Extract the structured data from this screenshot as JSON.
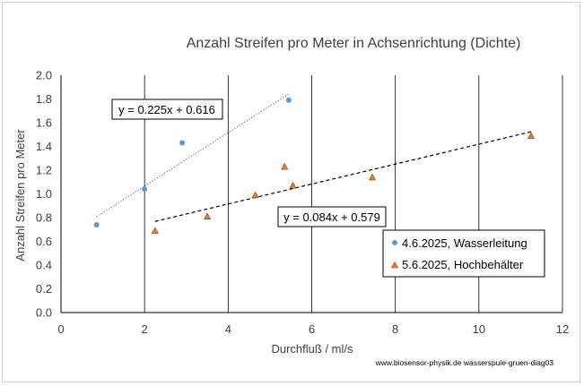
{
  "chart_data": {
    "type": "scatter",
    "title": "Anzahl Streifen pro Meter in Achsenrichtung (Dichte)",
    "xlabel": "Durchfluß / ml/s",
    "ylabel": "Anzahl Streifen pro Meter",
    "xlim": [
      0,
      12
    ],
    "ylim": [
      0,
      2.0
    ],
    "x_ticks": [
      "0",
      "2",
      "4",
      "6",
      "8",
      "10",
      "12"
    ],
    "y_ticks": [
      "0.0",
      "0.2",
      "0.4",
      "0.6",
      "0.8",
      "1.0",
      "1.2",
      "1.4",
      "1.6",
      "1.8",
      "2.0"
    ],
    "grid": "vertical",
    "legend_position": "bottom-right",
    "series": [
      {
        "name": "4.6.2025, Wasserleitung",
        "marker": "circle",
        "color": "#5b9bd5",
        "points": [
          [
            0.85,
            0.74
          ],
          [
            2.0,
            1.04
          ],
          [
            2.9,
            1.43
          ],
          [
            5.45,
            1.79
          ]
        ],
        "trendline": {
          "equation": "y = 0.225x + 0.616",
          "slope": 0.225,
          "intercept": 0.616,
          "x_range": [
            0.85,
            5.45
          ],
          "style": "dotted"
        }
      },
      {
        "name": "5.6.2025, Hochbehälter",
        "marker": "triangle",
        "color": "#ed7d31",
        "points": [
          [
            2.25,
            0.69
          ],
          [
            3.5,
            0.81
          ],
          [
            4.65,
            0.99
          ],
          [
            5.35,
            1.23
          ],
          [
            5.55,
            1.07
          ],
          [
            7.45,
            1.14
          ],
          [
            11.25,
            1.49
          ]
        ],
        "trendline": {
          "equation": "y = 0.084x + 0.579",
          "slope": 0.084,
          "intercept": 0.579,
          "x_range": [
            2.25,
            11.25
          ],
          "style": "dashed"
        }
      }
    ]
  },
  "footer": "www.biosensor-physik.de  wasserspule-gruen-diag03"
}
